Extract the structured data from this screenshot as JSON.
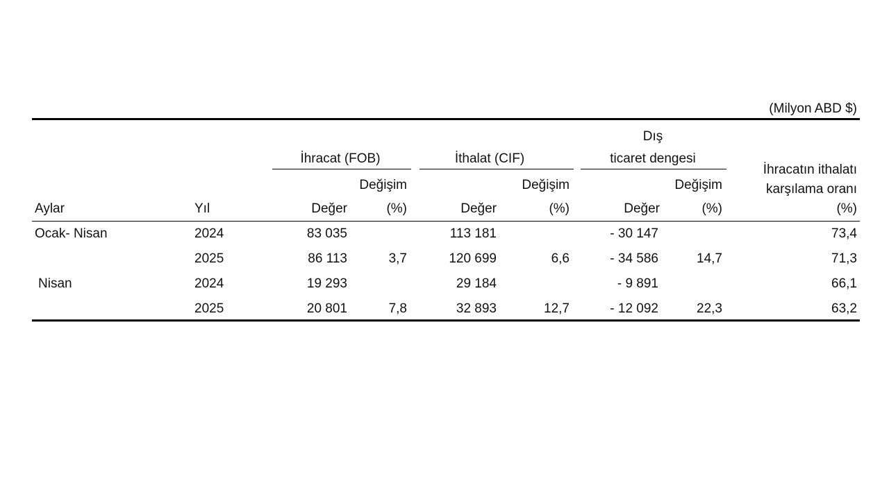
{
  "unit_note": "(Milyon ABD $)",
  "headers": {
    "ihracat": "İhracat (FOB)",
    "ithalat": "İthalat (CIF)",
    "denge_line1": "Dış",
    "denge_line2": "ticaret dengesi",
    "oran_line1": "İhracatın ithalatı",
    "oran_line2": "karşılama oranı",
    "oran_unit": "(%)",
    "degisim": "Değişim",
    "aylar": "Aylar",
    "yil": "Yıl",
    "deger": "Değer",
    "pct": "(%)"
  },
  "rows": [
    {
      "period": "Ocak- Nisan",
      "year": "2024",
      "exp_val": "83 035",
      "exp_chg": "",
      "imp_val": "113 181",
      "imp_chg": "",
      "bal_val": "- 30 147",
      "bal_chg": "",
      "ratio": "73,4"
    },
    {
      "period": "",
      "year": "2025",
      "exp_val": "86 113",
      "exp_chg": "3,7",
      "imp_val": "120 699",
      "imp_chg": "6,6",
      "bal_val": "- 34 586",
      "bal_chg": "14,7",
      "ratio": "71,3"
    },
    {
      "period": "Nisan",
      "year": "2024",
      "exp_val": "19 293",
      "exp_chg": "",
      "imp_val": "29 184",
      "imp_chg": "",
      "bal_val": "- 9 891",
      "bal_chg": "",
      "ratio": "66,1"
    },
    {
      "period": "",
      "year": "2025",
      "exp_val": "20 801",
      "exp_chg": "7,8",
      "imp_val": "32 893",
      "imp_chg": "12,7",
      "bal_val": "- 12 092",
      "bal_chg": "22,3",
      "ratio": "63,2"
    }
  ]
}
